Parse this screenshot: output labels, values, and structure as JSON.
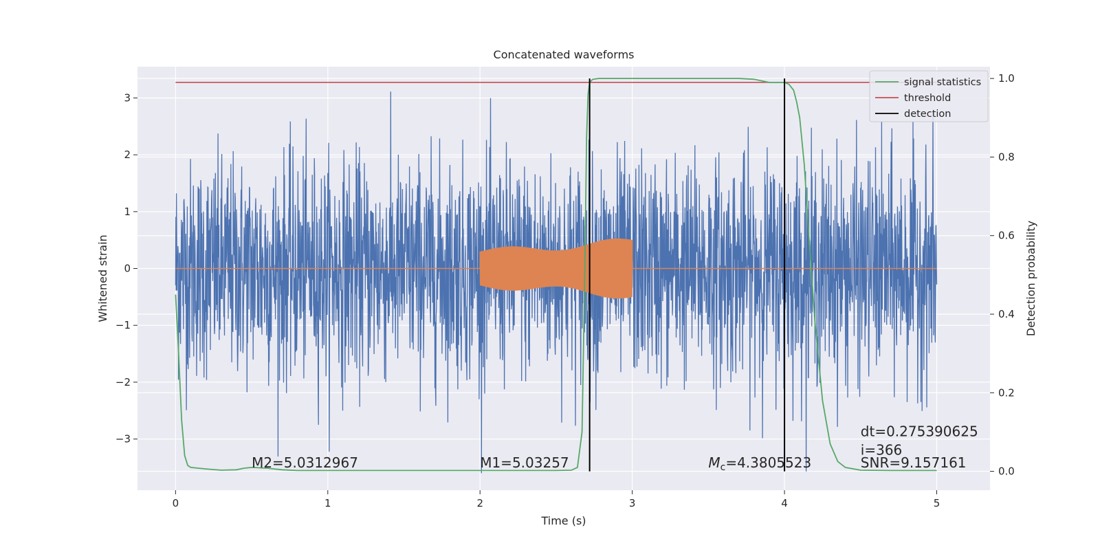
{
  "chart_data": {
    "type": "line",
    "title": "Concatenated waveforms",
    "xlabel": "Time (s)",
    "ylabel": "Whitened strain",
    "ylabel_right": "Detection probability",
    "xlim": [
      -0.25,
      5.35
    ],
    "ylim": [
      -3.9,
      3.55
    ],
    "ylim_right": [
      -0.048,
      1.03
    ],
    "x_ticks": [
      0,
      1,
      2,
      3,
      4,
      5
    ],
    "x_tick_labels": [
      "0",
      "1",
      "2",
      "3",
      "4",
      "5"
    ],
    "y_ticks": [
      -3,
      -2,
      -1,
      0,
      1,
      2,
      3
    ],
    "y_tick_labels": [
      "−3",
      "−2",
      "−1",
      "0",
      "1",
      "2",
      "3"
    ],
    "y_right_ticks": [
      0.0,
      0.2,
      0.4,
      0.6,
      0.8,
      1.0
    ],
    "y_right_tick_labels": [
      "0.0",
      "0.2",
      "0.4",
      "0.6",
      "0.8",
      "1.0"
    ],
    "grid": true,
    "legend_position": "top-right",
    "colors": {
      "background": "#eaeaf2",
      "strain": "#4c72b0",
      "injected": "#dd8452",
      "signal": "#55a868",
      "threshold": "#c44e52",
      "detection": "#000000"
    },
    "series": [
      {
        "name": "",
        "kind": "whitened-strain-noise",
        "x_range": [
          0,
          5
        ],
        "typical_amplitude": 2.0,
        "max_value": 3.35,
        "min_value": -3.6
      },
      {
        "name": "",
        "kind": "injected-chirp",
        "x_range": [
          2.0,
          3.0
        ],
        "start_amplitude": 0.35,
        "end_amplitude": 0.55,
        "baseline": 0
      },
      {
        "name": "signal statistics",
        "axis": "right",
        "x": [
          0,
          0.02,
          0.04,
          0.06,
          0.08,
          0.1,
          0.15,
          0.2,
          0.3,
          0.4,
          0.45,
          0.5,
          0.55,
          0.6,
          0.7,
          0.8,
          1.0,
          1.5,
          2.0,
          2.5,
          2.6,
          2.64,
          2.67,
          2.69,
          2.7,
          2.71,
          2.72,
          2.74,
          2.78,
          2.9,
          3.2,
          3.5,
          3.7,
          3.8,
          3.9,
          4.0,
          4.03,
          4.06,
          4.08,
          4.1,
          4.13,
          4.16,
          4.2,
          4.25,
          4.3,
          4.35,
          4.4,
          4.5,
          4.7,
          5.0
        ],
        "y": [
          0.45,
          0.3,
          0.13,
          0.04,
          0.015,
          0.01,
          0.008,
          0.006,
          0.003,
          0.004,
          0.008,
          0.01,
          0.009,
          0.008,
          0.004,
          0.002,
          0.002,
          0.002,
          0.002,
          0.002,
          0.003,
          0.01,
          0.1,
          0.55,
          0.85,
          0.96,
          0.99,
          0.998,
          1.0,
          1.0,
          1.0,
          1.0,
          1.0,
          0.998,
          0.99,
          0.99,
          0.985,
          0.97,
          0.94,
          0.9,
          0.78,
          0.6,
          0.38,
          0.18,
          0.07,
          0.025,
          0.01,
          0.003,
          0.002,
          0.002
        ]
      },
      {
        "name": "threshold",
        "axis": "right",
        "x": [
          0,
          5
        ],
        "y": [
          0.99,
          0.99
        ]
      },
      {
        "name": "detection",
        "axis": "right",
        "vertical_lines_x": [
          2.72,
          4.0
        ],
        "y_range": [
          0,
          1.0
        ]
      }
    ],
    "annotations": [
      {
        "text": "M2=5.0312967",
        "x": 0.5,
        "y": -3.5
      },
      {
        "text": "M1=5.03257",
        "x": 2.0,
        "y": -3.5
      },
      {
        "text_sym": "M",
        "text_sub": "c",
        "text_rest": "=4.3805523",
        "x": 3.5,
        "y": -3.5
      },
      {
        "text": "dt=0.275390625",
        "x": 4.5,
        "y": -2.95
      },
      {
        "text": " i=366",
        "x": 4.5,
        "y": -3.28
      },
      {
        "text": "SNR=9.157161",
        "x": 4.5,
        "y": -3.5
      }
    ]
  }
}
